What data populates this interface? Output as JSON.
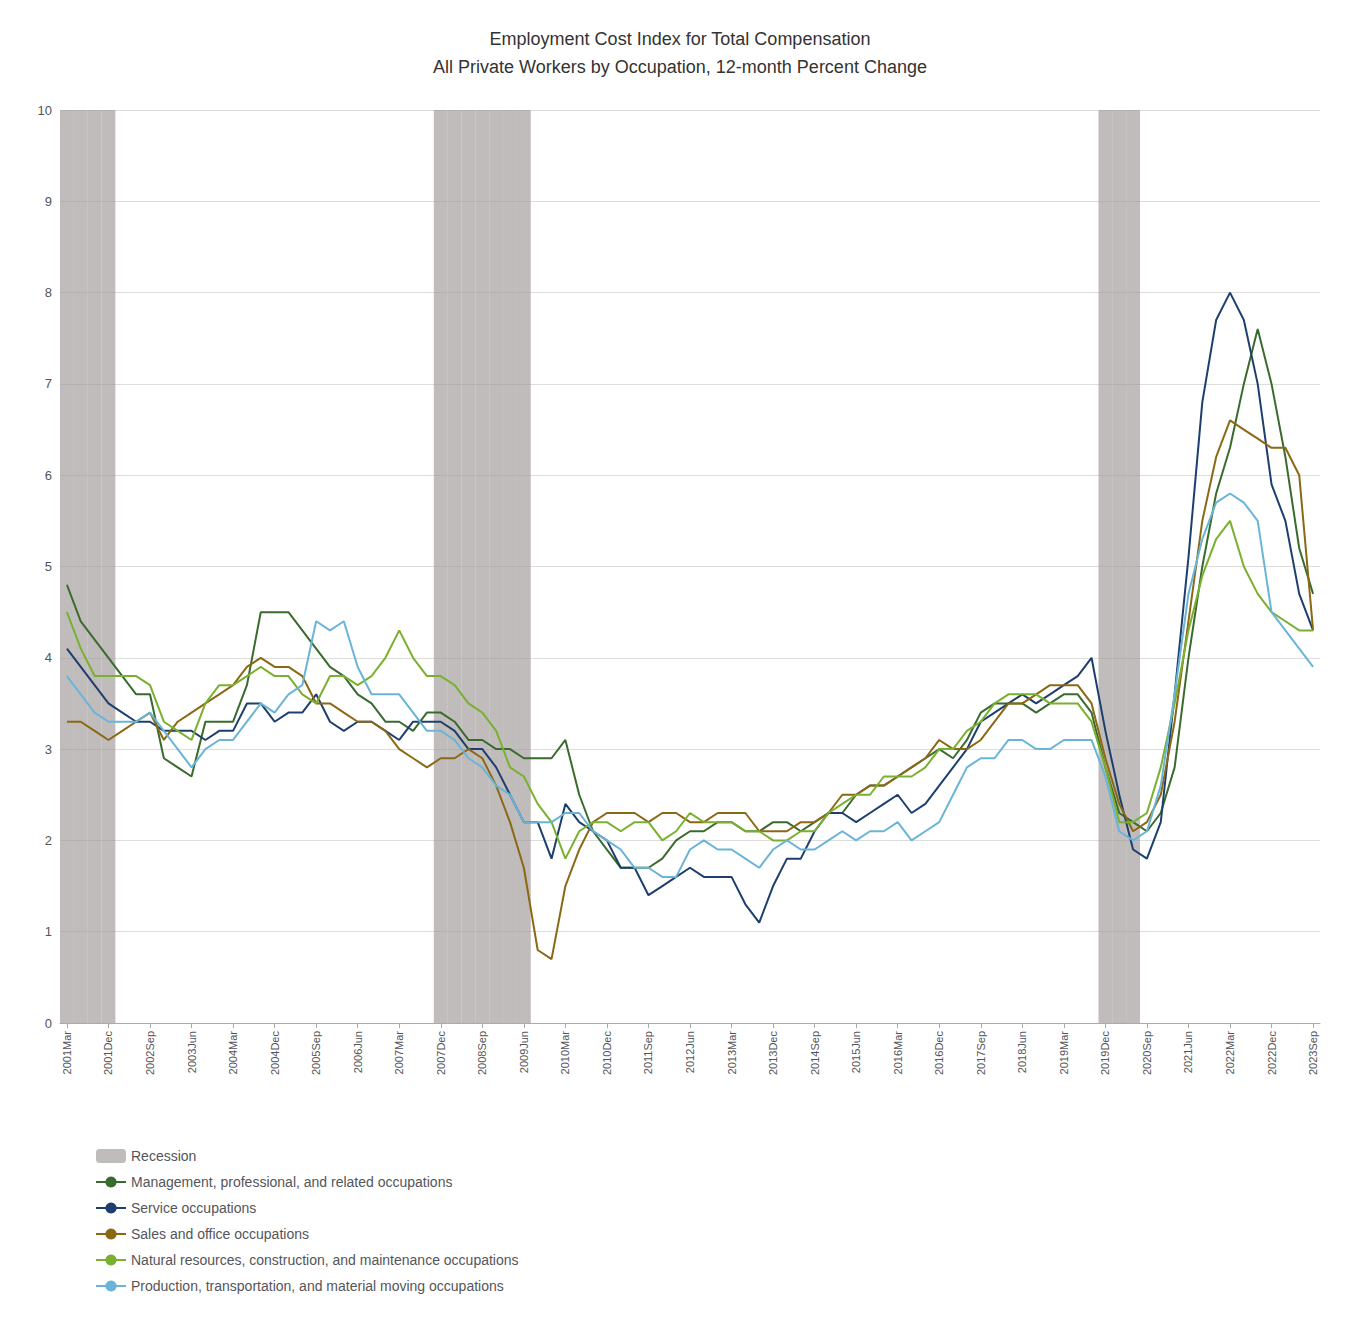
{
  "chart_data": {
    "type": "line",
    "title": "Employment Cost Index for Total Compensation\nAll Private Workers by Occupation, 12-month Percent Change",
    "categories": [
      "2001Mar",
      null,
      null,
      "2001Dec",
      null,
      null,
      "2002Sep",
      null,
      null,
      "2003Jun",
      null,
      null,
      "2004Mar",
      null,
      null,
      "2004Dec",
      null,
      null,
      "2005Sep",
      null,
      null,
      "2006Jun",
      null,
      null,
      "2007Mar",
      null,
      null,
      "2007Dec",
      null,
      null,
      "2008Sep",
      null,
      null,
      "2009Jun",
      null,
      null,
      "2010Mar",
      null,
      null,
      "2010Dec",
      null,
      null,
      "2011Sep",
      null,
      null,
      "2012Jun",
      null,
      null,
      "2013Mar",
      null,
      null,
      "2013Dec",
      null,
      null,
      "2014Sep",
      null,
      null,
      "2015Jun",
      null,
      null,
      "2016Mar",
      null,
      null,
      "2016Dec",
      null,
      null,
      "2017Sep",
      null,
      null,
      "2018Jun",
      null,
      null,
      "2019Mar",
      null,
      null,
      "2019Dec",
      null,
      null,
      "2020Sep",
      null,
      null,
      "2021Jun",
      null,
      null,
      "2022Mar",
      null,
      null,
      "2022Dec",
      null,
      null,
      "2023Sep"
    ],
    "recessions": {
      "name": "Recession",
      "color": "#a09898",
      "spans": [
        [
          0,
          3
        ],
        [
          27,
          33
        ],
        [
          75,
          77
        ]
      ]
    },
    "series": [
      {
        "name": "Management, professional, and related occupations",
        "color": "#3a6b2e",
        "values": [
          4.8,
          4.4,
          4.2,
          4.0,
          3.8,
          3.6,
          3.6,
          2.9,
          2.8,
          2.7,
          3.3,
          3.3,
          3.3,
          3.7,
          4.5,
          4.5,
          4.5,
          4.3,
          4.1,
          3.9,
          3.8,
          3.6,
          3.5,
          3.3,
          3.3,
          3.2,
          3.4,
          3.4,
          3.3,
          3.1,
          3.1,
          3.0,
          3.0,
          2.9,
          2.9,
          2.9,
          3.1,
          2.5,
          2.1,
          1.9,
          1.7,
          1.7,
          1.7,
          1.8,
          2.0,
          2.1,
          2.1,
          2.2,
          2.2,
          2.1,
          2.1,
          2.2,
          2.2,
          2.1,
          2.2,
          2.3,
          2.3,
          2.5,
          2.6,
          2.6,
          2.7,
          2.8,
          2.9,
          3.0,
          2.9,
          3.1,
          3.4,
          3.5,
          3.5,
          3.5,
          3.4,
          3.5,
          3.6,
          3.6,
          3.4,
          2.8,
          2.3,
          2.2,
          2.1,
          2.3,
          2.8,
          4.0,
          5.0,
          5.8,
          6.3,
          7.0,
          7.6,
          7.0,
          6.2,
          5.2,
          4.7
        ]
      },
      {
        "name": "Service occupations",
        "color": "#1e3f6e",
        "values": [
          4.1,
          3.9,
          3.7,
          3.5,
          3.4,
          3.3,
          3.3,
          3.2,
          3.2,
          3.2,
          3.1,
          3.2,
          3.2,
          3.5,
          3.5,
          3.3,
          3.4,
          3.4,
          3.6,
          3.3,
          3.2,
          3.3,
          3.3,
          3.2,
          3.1,
          3.3,
          3.3,
          3.3,
          3.2,
          3.0,
          3.0,
          2.8,
          2.5,
          2.2,
          2.2,
          1.8,
          2.4,
          2.2,
          2.1,
          2.0,
          1.7,
          1.7,
          1.4,
          1.5,
          1.6,
          1.7,
          1.6,
          1.6,
          1.6,
          1.3,
          1.1,
          1.5,
          1.8,
          1.8,
          2.1,
          2.3,
          2.3,
          2.2,
          2.3,
          2.4,
          2.5,
          2.3,
          2.4,
          2.6,
          2.8,
          3.0,
          3.3,
          3.4,
          3.5,
          3.6,
          3.5,
          3.6,
          3.7,
          3.8,
          4.0,
          3.2,
          2.5,
          1.9,
          1.8,
          2.2,
          3.6,
          5.1,
          6.8,
          7.7,
          8.0,
          7.7,
          7.0,
          5.9,
          5.5,
          4.7,
          4.3
        ]
      },
      {
        "name": "Sales and office occupations",
        "color": "#8b6914",
        "values": [
          3.3,
          3.3,
          3.2,
          3.1,
          3.2,
          3.3,
          3.4,
          3.1,
          3.3,
          3.4,
          3.5,
          3.6,
          3.7,
          3.9,
          4.0,
          3.9,
          3.9,
          3.8,
          3.5,
          3.5,
          3.4,
          3.3,
          3.3,
          3.2,
          3.0,
          2.9,
          2.8,
          2.9,
          2.9,
          3.0,
          2.9,
          2.6,
          2.2,
          1.7,
          0.8,
          0.7,
          1.5,
          1.9,
          2.2,
          2.3,
          2.3,
          2.3,
          2.2,
          2.3,
          2.3,
          2.2,
          2.2,
          2.3,
          2.3,
          2.3,
          2.1,
          2.1,
          2.1,
          2.2,
          2.2,
          2.3,
          2.5,
          2.5,
          2.6,
          2.6,
          2.7,
          2.8,
          2.9,
          3.1,
          3.0,
          3.0,
          3.1,
          3.3,
          3.5,
          3.5,
          3.6,
          3.7,
          3.7,
          3.7,
          3.5,
          2.9,
          2.4,
          2.1,
          2.2,
          2.5,
          3.3,
          4.4,
          5.5,
          6.2,
          6.6,
          6.5,
          6.4,
          6.3,
          6.3,
          6.0,
          4.3
        ]
      },
      {
        "name": "Natural resources, construction, and maintenance occupations",
        "color": "#7ab030",
        "values": [
          4.5,
          4.1,
          3.8,
          3.8,
          3.8,
          3.8,
          3.7,
          3.3,
          3.2,
          3.1,
          3.5,
          3.7,
          3.7,
          3.8,
          3.9,
          3.8,
          3.8,
          3.6,
          3.5,
          3.8,
          3.8,
          3.7,
          3.8,
          4.0,
          4.3,
          4.0,
          3.8,
          3.8,
          3.7,
          3.5,
          3.4,
          3.2,
          2.8,
          2.7,
          2.4,
          2.2,
          1.8,
          2.1,
          2.2,
          2.2,
          2.1,
          2.2,
          2.2,
          2.0,
          2.1,
          2.3,
          2.2,
          2.2,
          2.2,
          2.1,
          2.1,
          2.0,
          2.0,
          2.1,
          2.1,
          2.3,
          2.4,
          2.5,
          2.5,
          2.7,
          2.7,
          2.7,
          2.8,
          3.0,
          3.0,
          3.2,
          3.3,
          3.5,
          3.6,
          3.6,
          3.6,
          3.5,
          3.5,
          3.5,
          3.3,
          2.8,
          2.2,
          2.2,
          2.3,
          2.8,
          3.5,
          4.3,
          4.9,
          5.3,
          5.5,
          5.0,
          4.7,
          4.5,
          4.4,
          4.3,
          4.3
        ]
      },
      {
        "name": "Production, transportation, and material moving occupations",
        "color": "#6ab4d8",
        "values": [
          3.8,
          3.6,
          3.4,
          3.3,
          3.3,
          3.3,
          3.4,
          3.2,
          3.0,
          2.8,
          3.0,
          3.1,
          3.1,
          3.3,
          3.5,
          3.4,
          3.6,
          3.7,
          4.4,
          4.3,
          4.4,
          3.9,
          3.6,
          3.6,
          3.6,
          3.4,
          3.2,
          3.2,
          3.1,
          2.9,
          2.8,
          2.6,
          2.5,
          2.2,
          2.2,
          2.2,
          2.3,
          2.3,
          2.1,
          2.0,
          1.9,
          1.7,
          1.7,
          1.6,
          1.6,
          1.9,
          2.0,
          1.9,
          1.9,
          1.8,
          1.7,
          1.9,
          2.0,
          1.9,
          1.9,
          2.0,
          2.1,
          2.0,
          2.1,
          2.1,
          2.2,
          2.0,
          2.1,
          2.2,
          2.5,
          2.8,
          2.9,
          2.9,
          3.1,
          3.1,
          3.0,
          3.0,
          3.1,
          3.1,
          3.1,
          2.7,
          2.1,
          2.0,
          2.1,
          2.6,
          3.6,
          4.7,
          5.3,
          5.7,
          5.8,
          5.7,
          5.5,
          4.5,
          4.3,
          4.1,
          3.9
        ]
      }
    ],
    "ylim": [
      0,
      10
    ],
    "yticks": [
      0,
      1,
      2,
      3,
      4,
      5,
      6,
      7,
      8,
      9,
      10
    ],
    "grid": true,
    "legend": "bottom"
  }
}
